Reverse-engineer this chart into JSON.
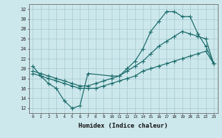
{
  "xlabel": "Humidex (Indice chaleur)",
  "bg_color": "#cde8ec",
  "grid_color": "#aacdd4",
  "line_color": "#1a6b6b",
  "xlim": [
    -0.5,
    23.5
  ],
  "ylim": [
    11,
    33
  ],
  "yticks": [
    12,
    14,
    16,
    18,
    20,
    22,
    24,
    26,
    28,
    30,
    32
  ],
  "xticks": [
    0,
    1,
    2,
    3,
    4,
    5,
    6,
    7,
    8,
    9,
    10,
    11,
    12,
    13,
    14,
    15,
    16,
    17,
    18,
    19,
    20,
    21,
    22,
    23
  ],
  "line1_x": [
    0,
    1,
    2,
    3,
    4,
    5,
    6,
    7,
    10,
    11,
    12,
    13,
    14,
    15,
    16,
    17,
    18,
    19,
    20,
    21,
    22,
    23
  ],
  "line1_y": [
    20.5,
    18.5,
    17.0,
    16.0,
    13.5,
    12.0,
    12.5,
    19.0,
    18.5,
    18.5,
    20.0,
    21.5,
    24.0,
    27.5,
    29.5,
    31.5,
    31.5,
    30.5,
    30.5,
    27.0,
    24.5,
    21.0
  ],
  "line2_x": [
    0,
    1,
    2,
    3,
    4,
    5,
    6,
    7,
    8,
    9,
    10,
    11,
    12,
    13,
    14,
    15,
    16,
    17,
    18,
    19,
    20,
    21,
    22,
    23
  ],
  "line2_y": [
    19.5,
    19.0,
    18.5,
    18.0,
    17.5,
    17.0,
    16.5,
    16.5,
    17.0,
    17.5,
    18.0,
    18.5,
    19.5,
    20.5,
    21.5,
    23.0,
    24.5,
    25.5,
    26.5,
    27.5,
    27.0,
    26.5,
    26.0,
    21.0
  ],
  "line3_x": [
    0,
    1,
    2,
    3,
    4,
    5,
    6,
    7,
    8,
    9,
    10,
    11,
    12,
    13,
    14,
    15,
    16,
    17,
    18,
    19,
    20,
    21,
    22,
    23
  ],
  "line3_y": [
    19.0,
    18.5,
    18.0,
    17.5,
    17.0,
    16.5,
    16.0,
    16.0,
    16.0,
    16.5,
    17.0,
    17.5,
    18.0,
    18.5,
    19.5,
    20.0,
    20.5,
    21.0,
    21.5,
    22.0,
    22.5,
    23.0,
    23.5,
    21.0
  ]
}
